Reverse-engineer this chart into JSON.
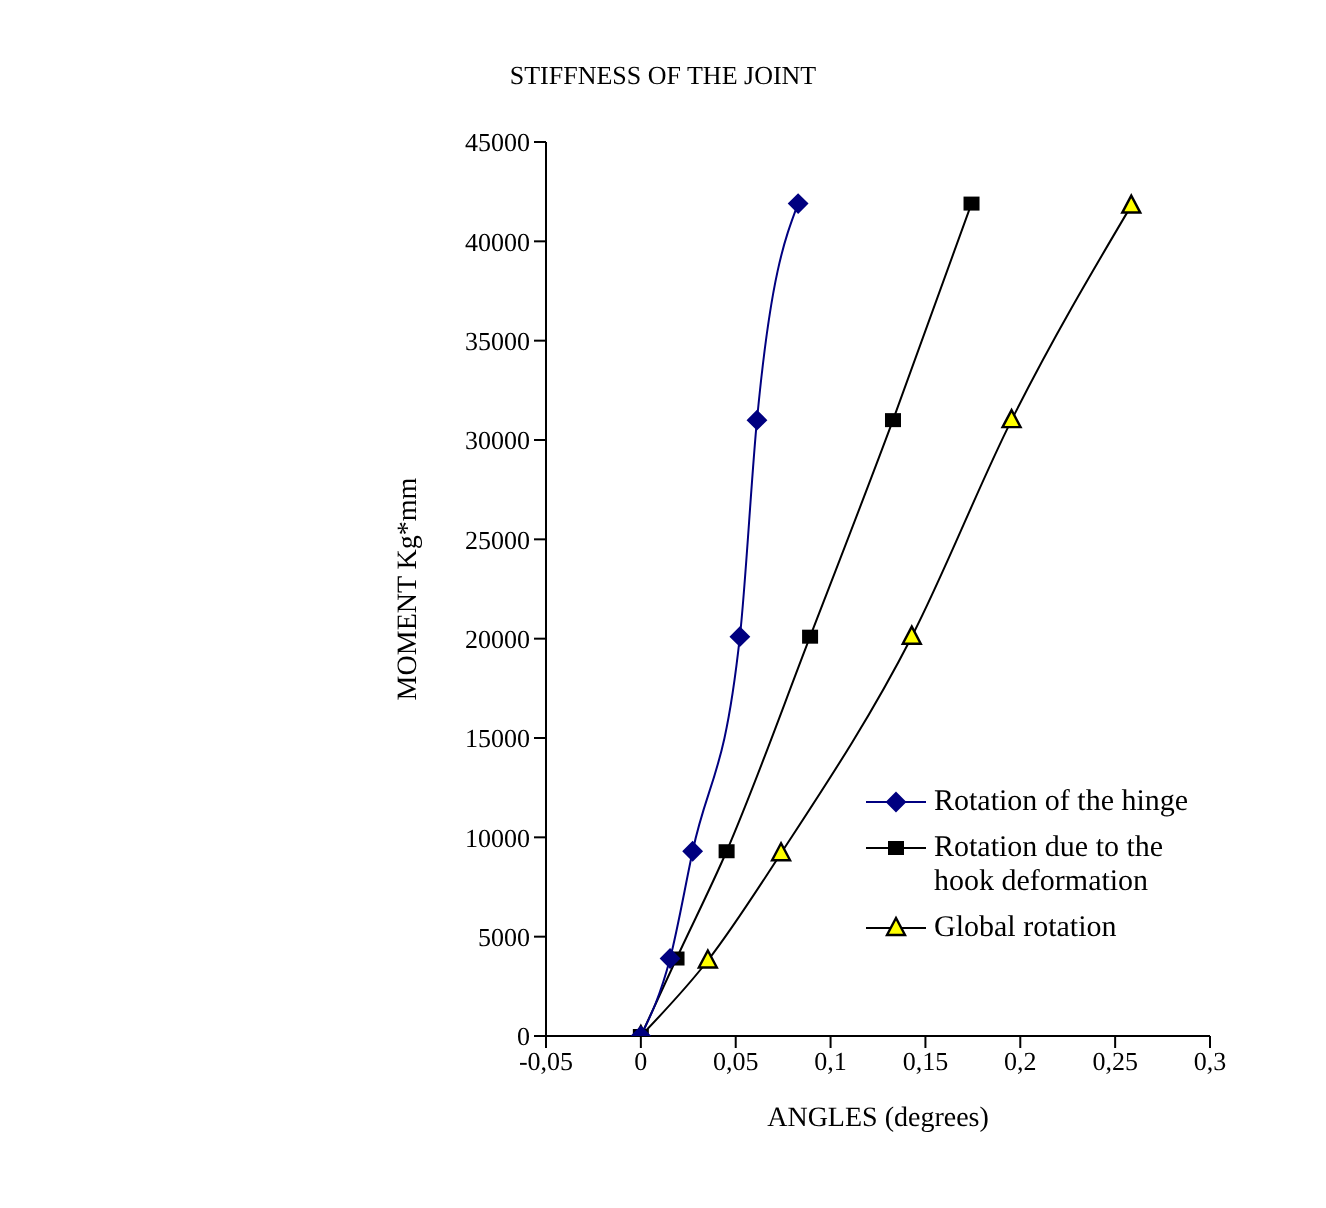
{
  "chart_data": {
    "type": "line",
    "title": "STIFFNESS OF THE JOINT",
    "xlabel": "ANGLES (degrees)",
    "ylabel": "MOMENT Kg*mm",
    "xlim": [
      -0.05,
      0.3
    ],
    "xticks": [
      {
        "value": -0.05,
        "label": "-0,05"
      },
      0,
      {
        "value": 0.05,
        "label": "0,05"
      },
      {
        "value": 0.1,
        "label": "0,1"
      },
      {
        "value": 0.15,
        "label": "0,15"
      },
      {
        "value": 0.2,
        "label": "0,2"
      },
      {
        "value": 0.25,
        "label": "0,25"
      },
      {
        "value": 0.3,
        "label": "0,3"
      }
    ],
    "ylim": [
      0,
      45000
    ],
    "yticks": [
      0,
      5000,
      10000,
      15000,
      20000,
      25000,
      30000,
      35000,
      40000,
      45000
    ],
    "grid": false,
    "legend": "right",
    "line_style": "solid",
    "series": [
      {
        "name": "Rotation of the hinge",
        "color": "#000080",
        "marker": "diamond",
        "x": [
          0,
          0.0154,
          0.0273,
          0.0522,
          0.0612,
          0.0829
        ],
        "values": [
          0,
          3900,
          9300,
          20100,
          31000,
          41900
        ]
      },
      {
        "name": "Rotation due to the hook deformation",
        "color": "#000000",
        "marker": "square",
        "x": [
          0,
          0.0188,
          0.0452,
          0.0892,
          0.1329,
          0.1743
        ],
        "values": [
          0,
          3900,
          9300,
          20100,
          31000,
          41900
        ]
      },
      {
        "name": "Global rotation",
        "color": "#000000",
        "marker": "triangle",
        "x": [
          0,
          0.0353,
          0.0739,
          0.1428,
          0.1954,
          0.2585
        ],
        "values": [
          0,
          3800,
          9200,
          20100,
          31000,
          41800
        ]
      }
    ]
  }
}
